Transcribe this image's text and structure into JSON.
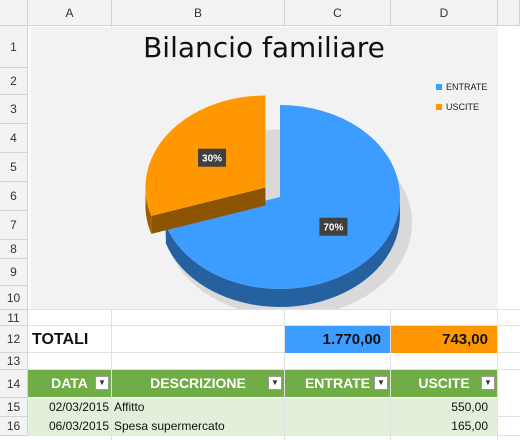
{
  "sheet": {
    "columns": [
      "A",
      "B",
      "C",
      "D"
    ],
    "rows": [
      "1",
      "2",
      "3",
      "4",
      "5",
      "6",
      "7",
      "8",
      "9",
      "10",
      "11",
      "12",
      "13",
      "14",
      "15",
      "16"
    ]
  },
  "chart_data": {
    "type": "pie",
    "title": "Bilancio familiare",
    "categories": [
      "ENTRATE",
      "USCITE"
    ],
    "values": [
      70,
      30
    ],
    "labels": [
      "70%",
      "30%"
    ],
    "colors": [
      "#3c9cff",
      "#ff9800"
    ],
    "exploded": "USCITE",
    "style": "3d",
    "legend_position": "top-right"
  },
  "totals": {
    "label": "TOTALI",
    "entrate": "1.770,00",
    "uscite": "743,00",
    "entrate_color": "#3c9cff",
    "uscite_color": "#ff9800"
  },
  "table": {
    "headers": [
      "DATA",
      "DESCRIZIONE",
      "ENTRATE",
      "USCITE"
    ],
    "header_color": "#70ad47",
    "filter_icon": "dropdown-arrow-icon",
    "rows": [
      {
        "data": "02/03/2015",
        "descrizione": "Affitto",
        "entrate": "",
        "uscite": "550,00"
      },
      {
        "data": "06/03/2015",
        "descrizione": "Spesa supermercato",
        "entrate": "",
        "uscite": "165,00"
      }
    ]
  }
}
